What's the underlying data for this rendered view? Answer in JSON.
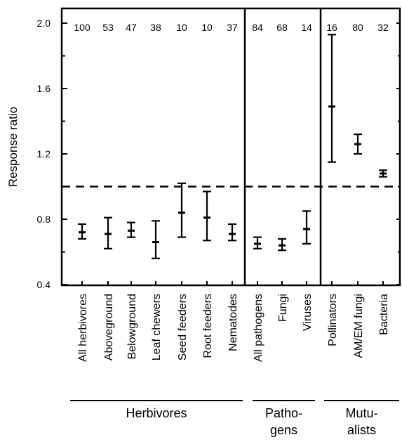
{
  "chart_data": {
    "type": "scatter",
    "title": "",
    "xlabel": "",
    "ylabel": "Response ratio",
    "ylim": [
      0.4,
      2.075
    ],
    "y_ticks": [
      "0.4",
      "0.8",
      "1.2",
      "1.6",
      "2.0"
    ],
    "reference_line": 1.0,
    "grid": false,
    "legend": "none",
    "categories": [
      "All herbivores",
      "Aboveground",
      "Belowground",
      "Leaf chewers",
      "Seed feeders",
      "Root feeders",
      "Nematodes",
      "All pathogens",
      "Fungi",
      "Viruses",
      "Pollinators",
      "AM/EM fungi",
      "Bacteria"
    ],
    "sample_sizes": [
      "100",
      "53",
      "47",
      "38",
      "10",
      "10",
      "37",
      "84",
      "68",
      "14",
      "16",
      "80",
      "32"
    ],
    "means": [
      0.72,
      0.71,
      0.73,
      0.66,
      0.84,
      0.81,
      0.71,
      0.65,
      0.64,
      0.74,
      1.49,
      1.26,
      1.08
    ],
    "ci_low": [
      0.68,
      0.62,
      0.69,
      0.56,
      0.69,
      0.67,
      0.67,
      0.62,
      0.61,
      0.65,
      1.15,
      1.2,
      1.06
    ],
    "ci_high": [
      0.77,
      0.81,
      0.78,
      0.79,
      1.02,
      0.97,
      0.77,
      0.69,
      0.68,
      0.85,
      1.93,
      1.32,
      1.1
    ],
    "groups": [
      {
        "label_lines": [
          "Herbivores"
        ],
        "count": 7
      },
      {
        "label_lines": [
          "Patho-",
          "gens"
        ],
        "count": 3
      },
      {
        "label_lines": [
          "Mutu-",
          "alists"
        ],
        "count": 3
      }
    ]
  }
}
